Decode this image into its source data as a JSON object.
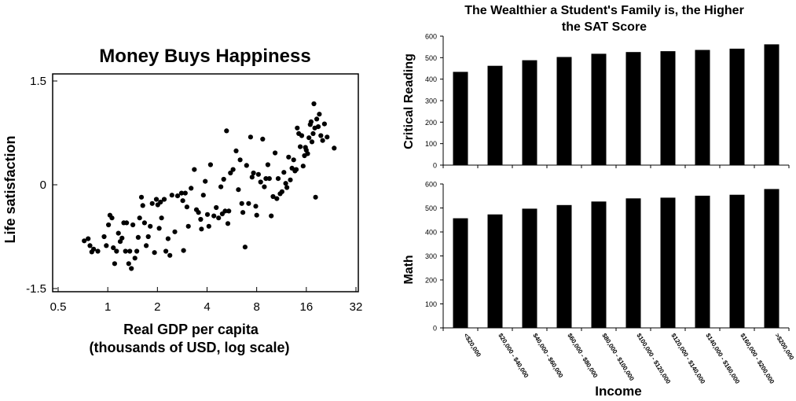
{
  "chart_data": [
    {
      "type": "scatter",
      "title": "Money Buys Happiness",
      "xlabel_line1": "Real GDP per capita",
      "xlabel_line2": "(thousands of USD, log scale)",
      "ylabel": "Life satisfaction",
      "x_scale": "log2",
      "xlim": [
        0.5,
        32
      ],
      "ylim": [
        -1.5,
        1.5
      ],
      "x_ticks": [
        "0.5",
        "1",
        "2",
        "4",
        "8",
        "16",
        "32"
      ],
      "y_ticks": [
        "1.5",
        "0",
        "-1.5"
      ],
      "points": [
        [
          0.72,
          -0.81
        ],
        [
          0.76,
          -0.78
        ],
        [
          0.78,
          -0.88
        ],
        [
          0.8,
          -0.97
        ],
        [
          0.82,
          -0.93
        ],
        [
          0.87,
          -0.96
        ],
        [
          0.95,
          -0.75
        ],
        [
          0.98,
          -0.88
        ],
        [
          1.01,
          -0.58
        ],
        [
          1.03,
          -0.44
        ],
        [
          1.06,
          -0.48
        ],
        [
          1.08,
          -0.91
        ],
        [
          1.1,
          -1.14
        ],
        [
          1.13,
          -0.96
        ],
        [
          1.16,
          -0.7
        ],
        [
          1.19,
          -0.82
        ],
        [
          1.22,
          -0.77
        ],
        [
          1.25,
          -0.55
        ],
        [
          1.28,
          -0.96
        ],
        [
          1.3,
          -0.55
        ],
        [
          1.34,
          -1.14
        ],
        [
          1.36,
          -0.96
        ],
        [
          1.39,
          -1.21
        ],
        [
          1.42,
          -0.58
        ],
        [
          1.46,
          -1.06
        ],
        [
          1.5,
          -0.96
        ],
        [
          1.53,
          -0.76
        ],
        [
          1.56,
          -0.48
        ],
        [
          1.6,
          -0.18
        ],
        [
          1.63,
          -0.3
        ],
        [
          1.67,
          -0.55
        ],
        [
          1.71,
          -0.88
        ],
        [
          1.76,
          -0.75
        ],
        [
          1.81,
          -0.6
        ],
        [
          1.86,
          -0.27
        ],
        [
          1.92,
          -0.98
        ],
        [
          1.97,
          -0.21
        ],
        [
          2.01,
          -0.29
        ],
        [
          2.05,
          -0.63
        ],
        [
          2.09,
          -0.25
        ],
        [
          2.12,
          -0.48
        ],
        [
          2.2,
          -0.21
        ],
        [
          2.25,
          -0.96
        ],
        [
          2.32,
          -0.78
        ],
        [
          2.38,
          -1.02
        ],
        [
          2.45,
          -0.15
        ],
        [
          2.55,
          -0.68
        ],
        [
          2.65,
          -0.16
        ],
        [
          2.8,
          -0.12
        ],
        [
          2.85,
          -0.23
        ],
        [
          2.88,
          -0.95
        ],
        [
          2.95,
          -0.12
        ],
        [
          3.02,
          -0.32
        ],
        [
          3.08,
          -0.6
        ],
        [
          3.2,
          -0.05
        ],
        [
          3.35,
          0.22
        ],
        [
          3.45,
          -0.36
        ],
        [
          3.55,
          -0.4
        ],
        [
          3.66,
          -0.5
        ],
        [
          3.7,
          -0.64
        ],
        [
          3.8,
          -0.15
        ],
        [
          3.9,
          0.05
        ],
        [
          4.02,
          -0.43
        ],
        [
          4.1,
          -0.6
        ],
        [
          4.2,
          0.29
        ],
        [
          4.4,
          -0.45
        ],
        [
          4.55,
          -0.33
        ],
        [
          4.7,
          -0.48
        ],
        [
          4.85,
          -0.03
        ],
        [
          4.95,
          -0.42
        ],
        [
          5.05,
          0.08
        ],
        [
          5.15,
          -0.38
        ],
        [
          5.25,
          0.78
        ],
        [
          5.35,
          -0.56
        ],
        [
          5.42,
          -0.38
        ],
        [
          5.55,
          0.17
        ],
        [
          5.75,
          0.22
        ],
        [
          6.0,
          0.49
        ],
        [
          6.2,
          -0.07
        ],
        [
          6.35,
          0.36
        ],
        [
          6.5,
          -0.27
        ],
        [
          6.6,
          -0.4
        ],
        [
          6.8,
          -0.9
        ],
        [
          6.95,
          0.28
        ],
        [
          7.15,
          -0.27
        ],
        [
          7.35,
          0.69
        ],
        [
          7.5,
          0.11
        ],
        [
          7.65,
          0.17
        ],
        [
          7.9,
          -0.31
        ],
        [
          8.0,
          -0.44
        ],
        [
          8.2,
          0.15
        ],
        [
          8.45,
          0.04
        ],
        [
          8.7,
          0.66
        ],
        [
          8.9,
          -0.03
        ],
        [
          9.1,
          0.09
        ],
        [
          9.35,
          0.29
        ],
        [
          9.55,
          0.09
        ],
        [
          9.8,
          -0.45
        ],
        [
          10.05,
          -0.17
        ],
        [
          10.35,
          0.46
        ],
        [
          10.6,
          -0.2
        ],
        [
          10.8,
          0.09
        ],
        [
          11.1,
          -0.13
        ],
        [
          11.4,
          -0.1
        ],
        [
          11.7,
          0.18
        ],
        [
          12.0,
          0.02
        ],
        [
          12.2,
          -0.04
        ],
        [
          12.5,
          0.4
        ],
        [
          12.8,
          0.07
        ],
        [
          13.1,
          0.24
        ],
        [
          13.4,
          0.36
        ],
        [
          13.65,
          0.2
        ],
        [
          13.9,
          0.22
        ],
        [
          14.1,
          0.82
        ],
        [
          14.4,
          0.74
        ],
        [
          14.7,
          0.55
        ],
        [
          15.0,
          0.71
        ],
        [
          15.3,
          0.27
        ],
        [
          15.6,
          0.42
        ],
        [
          15.8,
          0.54
        ],
        [
          16.0,
          0.5
        ],
        [
          16.3,
          0.45
        ],
        [
          16.6,
          0.68
        ],
        [
          16.9,
          0.87
        ],
        [
          17.1,
          0.91
        ],
        [
          17.3,
          0.62
        ],
        [
          17.6,
          0.74
        ],
        [
          17.8,
          1.17
        ],
        [
          18.0,
          0.82
        ],
        [
          18.2,
          -0.18
        ],
        [
          18.5,
          0.95
        ],
        [
          18.9,
          0.84
        ],
        [
          19.2,
          1.02
        ],
        [
          19.6,
          0.71
        ],
        [
          20.1,
          0.64
        ],
        [
          20.6,
          0.88
        ],
        [
          21.4,
          0.69
        ],
        [
          23.6,
          0.53
        ]
      ]
    },
    {
      "type": "bar",
      "title_line1": "The Wealthier a Student's Family is, the Higher",
      "title_line2": "the SAT Score",
      "xlabel": "Income",
      "categories": [
        "<$20,000",
        "$20,000 - $40,000",
        "$40,000 - $60,000",
        "$60,000 - $80,000",
        "$80,000 - $100,000",
        "$100,000 - $120,000",
        "$120,000 - $140,000",
        "$140,000 - $160,000",
        "$160,000 - $200,000",
        ">$200,000"
      ],
      "series": [
        {
          "name": "Critical Reading",
          "values": [
            434,
            462,
            488,
            503,
            518,
            526,
            530,
            536,
            542,
            562
          ],
          "ylim": [
            0,
            600
          ],
          "ticks": [
            "600",
            "500",
            "400",
            "300",
            "200",
            "100",
            "0"
          ]
        },
        {
          "name": "Math",
          "values": [
            457,
            473,
            497,
            512,
            527,
            540,
            543,
            551,
            555,
            579
          ],
          "ylim": [
            0,
            600
          ],
          "ticks": [
            "600",
            "500",
            "400",
            "300",
            "200",
            "100",
            "0"
          ]
        }
      ],
      "bar_color": "#000000"
    }
  ]
}
